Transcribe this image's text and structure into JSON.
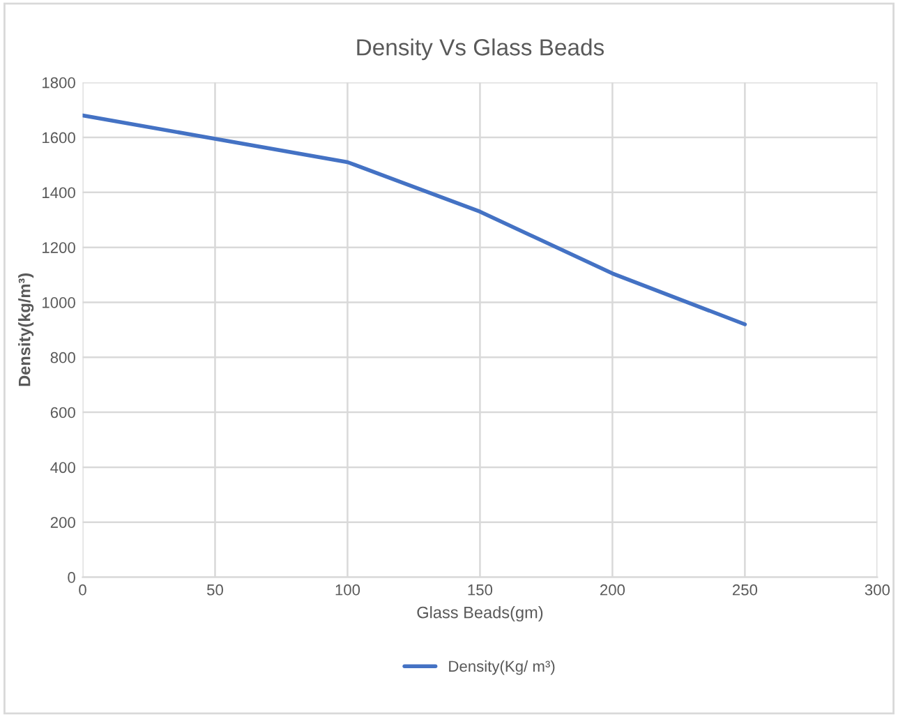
{
  "chart_data": {
    "type": "line",
    "title": "Density Vs Glass Beads",
    "xlabel": "Glass Beads(gm)",
    "ylabel": "Density(kg/m³)",
    "x": [
      0,
      50,
      100,
      150,
      200,
      250
    ],
    "series": [
      {
        "name": "Density(Kg/ m³)",
        "color": "#4472c4",
        "values": [
          1680,
          1595,
          1510,
          1330,
          1105,
          920
        ]
      }
    ],
    "xlim": [
      0,
      300
    ],
    "xticks": [
      0,
      50,
      100,
      150,
      200,
      250,
      300
    ],
    "ylim": [
      0,
      1800
    ],
    "yticks": [
      0,
      200,
      400,
      600,
      800,
      1000,
      1200,
      1400,
      1600,
      1800
    ],
    "grid": true,
    "legend": "bottom",
    "marker": "none",
    "line_style": "solid"
  }
}
